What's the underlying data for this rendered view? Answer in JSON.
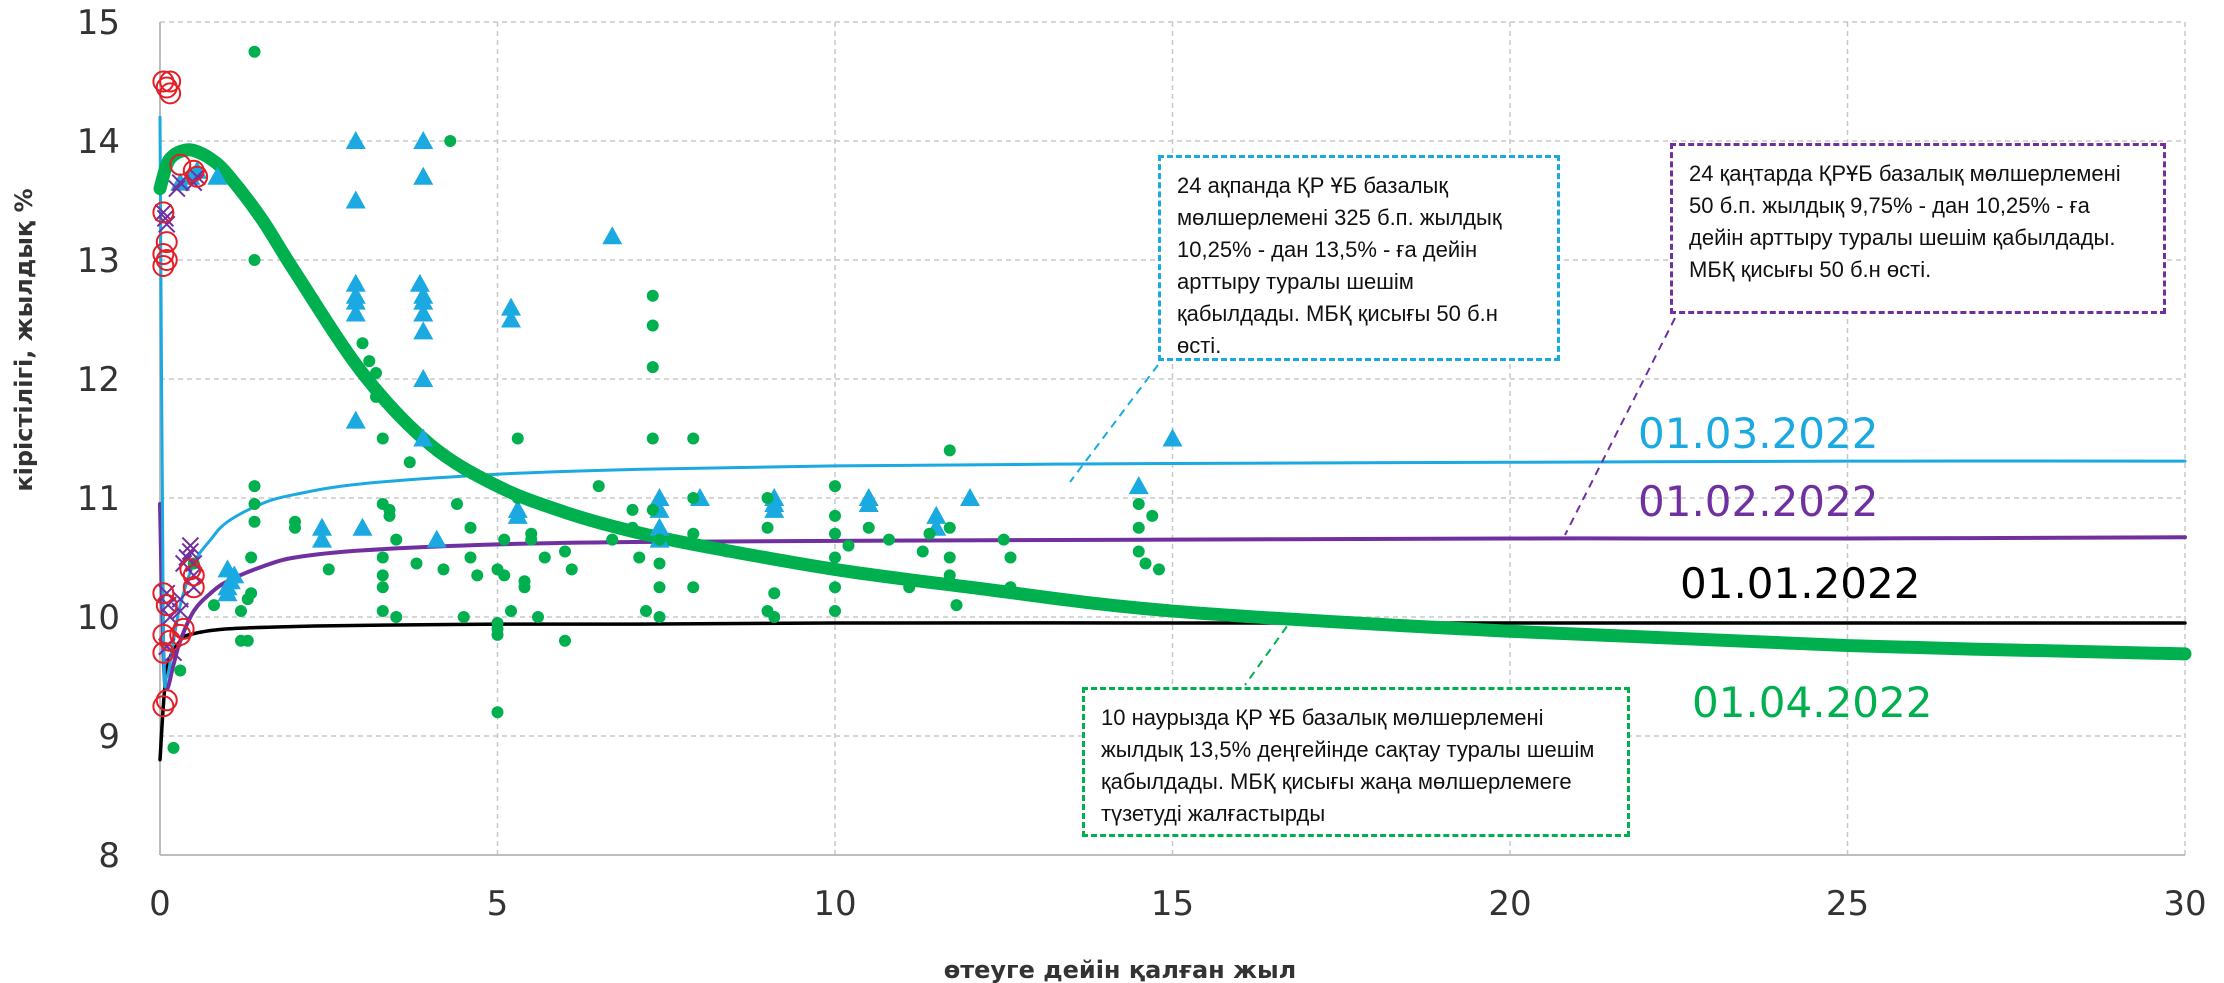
{
  "chart_data": {
    "type": "scatter",
    "xlabel": "өтеуге дейін қалған жыл",
    "ylabel": "кірістілігі, жылдық %",
    "xlim": [
      0,
      30
    ],
    "ylim": [
      8,
      15
    ],
    "xticks": [
      "0",
      "5",
      "10",
      "15",
      "20",
      "25",
      "30"
    ],
    "yticks": [
      "8",
      "9",
      "10",
      "11",
      "12",
      "13",
      "14",
      "15"
    ],
    "grid": true,
    "colors": {
      "jan": "#000000",
      "feb": "#7030a0",
      "mar": "#1aa9e1",
      "apr": "#00b04f",
      "red_markers": "#e41e26"
    },
    "curves": [
      {
        "name": "01.01.2022",
        "color": "#000000",
        "x": [
          0.0,
          0.1,
          0.3,
          0.5,
          1,
          2,
          3,
          5,
          7,
          10,
          15,
          20,
          25,
          30
        ],
        "y": [
          8.8,
          9.55,
          9.8,
          9.86,
          9.9,
          9.92,
          9.93,
          9.94,
          9.94,
          9.95,
          9.95,
          9.95,
          9.95,
          9.95
        ]
      },
      {
        "name": "01.02.2022",
        "color": "#7030a0",
        "x": [
          0.0,
          0.05,
          0.1,
          0.2,
          0.3,
          0.5,
          0.75,
          1,
          1.5,
          2,
          3,
          5,
          7,
          10,
          15,
          20,
          25,
          30
        ],
        "y": [
          10.95,
          9.7,
          9.4,
          9.6,
          9.8,
          10.05,
          10.2,
          10.3,
          10.42,
          10.5,
          10.56,
          10.61,
          10.63,
          10.64,
          10.65,
          10.66,
          10.66,
          10.67
        ]
      },
      {
        "name": "01.03.2022",
        "color": "#1aa9e1",
        "x": [
          0.0,
          0.05,
          0.1,
          0.2,
          0.3,
          0.5,
          0.75,
          1,
          1.5,
          2,
          3,
          5,
          7,
          10,
          15,
          20,
          25,
          30
        ],
        "y": [
          14.2,
          9.9,
          9.5,
          9.8,
          10.1,
          10.45,
          10.65,
          10.8,
          10.95,
          11.03,
          11.12,
          11.2,
          11.24,
          11.27,
          11.29,
          11.3,
          11.31,
          11.31
        ]
      },
      {
        "name": "01.04.2022",
        "color": "#00b04f",
        "x": [
          0.0,
          0.1,
          0.2,
          0.35,
          0.5,
          0.75,
          1,
          1.5,
          2,
          3,
          4,
          5,
          6,
          7,
          8,
          10,
          12,
          15,
          20,
          25,
          30
        ],
        "y": [
          13.6,
          13.8,
          13.88,
          13.92,
          13.92,
          13.85,
          13.72,
          13.35,
          12.9,
          12.05,
          11.45,
          11.1,
          10.88,
          10.72,
          10.6,
          10.4,
          10.25,
          10.05,
          9.88,
          9.76,
          9.69
        ]
      }
    ],
    "series": [
      {
        "marker": "triangle",
        "color": "#1aa9e1",
        "points": [
          [
            0.3,
            13.65
          ],
          [
            0.45,
            13.7
          ],
          [
            0.55,
            13.75
          ],
          [
            0.85,
            13.7
          ],
          [
            1,
            10.25
          ],
          [
            1,
            10.4
          ],
          [
            1,
            10.2
          ],
          [
            1.05,
            10.3
          ],
          [
            1.1,
            10.35
          ],
          [
            2.4,
            10.75
          ],
          [
            2.4,
            10.65
          ],
          [
            2.9,
            14
          ],
          [
            2.9,
            13.5
          ],
          [
            2.9,
            12.8
          ],
          [
            2.9,
            12.7
          ],
          [
            2.9,
            12.65
          ],
          [
            2.9,
            12.55
          ],
          [
            2.9,
            11.65
          ],
          [
            3,
            10.75
          ],
          [
            3.9,
            14
          ],
          [
            3.9,
            13.7
          ],
          [
            3.85,
            12.8
          ],
          [
            3.9,
            12.7
          ],
          [
            3.9,
            12.65
          ],
          [
            3.9,
            12.55
          ],
          [
            3.9,
            12.4
          ],
          [
            3.9,
            12
          ],
          [
            3.9,
            11.5
          ],
          [
            4.1,
            10.65
          ],
          [
            5.2,
            12.6
          ],
          [
            5.2,
            12.5
          ],
          [
            5.3,
            10.9
          ],
          [
            5.3,
            10.85
          ],
          [
            6.7,
            13.2
          ],
          [
            7.4,
            11
          ],
          [
            7.4,
            10.9
          ],
          [
            7.4,
            10.75
          ],
          [
            7.4,
            10.65
          ],
          [
            8,
            11
          ],
          [
            9.1,
            11
          ],
          [
            9.1,
            10.95
          ],
          [
            9.1,
            10.9
          ],
          [
            10.5,
            11
          ],
          [
            10.5,
            10.95
          ],
          [
            11.5,
            10.85
          ],
          [
            11.5,
            10.75
          ],
          [
            12,
            11
          ],
          [
            14.5,
            11.1
          ],
          [
            15,
            11.5
          ]
        ]
      },
      {
        "marker": "dot",
        "color": "#00b04f",
        "points": [
          [
            0.2,
            8.9
          ],
          [
            0.3,
            9.55
          ],
          [
            0.5,
            10.45
          ],
          [
            0.8,
            10.1
          ],
          [
            1.2,
            10.05
          ],
          [
            1.2,
            9.8
          ],
          [
            1.3,
            9.8
          ],
          [
            1.3,
            10.15
          ],
          [
            1.4,
            14.75
          ],
          [
            1.4,
            13
          ],
          [
            1.4,
            11.1
          ],
          [
            1.4,
            10.95
          ],
          [
            1.4,
            10.8
          ],
          [
            1.35,
            10.5
          ],
          [
            1.35,
            10.2
          ],
          [
            2,
            10.75
          ],
          [
            2,
            10.8
          ],
          [
            2.5,
            10.4
          ],
          [
            3,
            12.3
          ],
          [
            3.1,
            12.15
          ],
          [
            3.2,
            12.05
          ],
          [
            3.2,
            11.85
          ],
          [
            3.3,
            11.5
          ],
          [
            3.3,
            10.95
          ],
          [
            3.4,
            10.9
          ],
          [
            3.4,
            10.85
          ],
          [
            3.3,
            10.5
          ],
          [
            3.3,
            10.35
          ],
          [
            3.3,
            10.25
          ],
          [
            3.3,
            10.05
          ],
          [
            3.5,
            10
          ],
          [
            3.5,
            10.65
          ],
          [
            3.7,
            11.3
          ],
          [
            3.8,
            10.45
          ],
          [
            4.2,
            10.4
          ],
          [
            4.3,
            14
          ],
          [
            4.4,
            10.95
          ],
          [
            4.5,
            10
          ],
          [
            4.6,
            10.75
          ],
          [
            4.6,
            10.5
          ],
          [
            4.7,
            10.35
          ],
          [
            5,
            9.95
          ],
          [
            5,
            9.9
          ],
          [
            5,
            9.85
          ],
          [
            5,
            9.2
          ],
          [
            5,
            10.4
          ],
          [
            5.1,
            10.65
          ],
          [
            5.1,
            10.35
          ],
          [
            5.2,
            10.05
          ],
          [
            5.3,
            11.5
          ],
          [
            5.3,
            11
          ],
          [
            5.4,
            10.3
          ],
          [
            5.4,
            10.25
          ],
          [
            5.5,
            10.7
          ],
          [
            5.5,
            10.65
          ],
          [
            5.6,
            10
          ],
          [
            5.7,
            10.5
          ],
          [
            6,
            9.8
          ],
          [
            6,
            10.55
          ],
          [
            6.1,
            10.4
          ],
          [
            6.5,
            11.1
          ],
          [
            6.7,
            10.65
          ],
          [
            7,
            10.9
          ],
          [
            7,
            10.75
          ],
          [
            7.1,
            10.5
          ],
          [
            7.2,
            10.05
          ],
          [
            7.3,
            12.7
          ],
          [
            7.3,
            12.45
          ],
          [
            7.3,
            12.1
          ],
          [
            7.3,
            11.5
          ],
          [
            7.3,
            10.9
          ],
          [
            7.4,
            10.65
          ],
          [
            7.4,
            10.45
          ],
          [
            7.4,
            10.25
          ],
          [
            7.4,
            10
          ],
          [
            7.9,
            11
          ],
          [
            7.9,
            10.7
          ],
          [
            7.9,
            10.25
          ],
          [
            7.9,
            11.5
          ],
          [
            8.4,
            10.55
          ],
          [
            9,
            11
          ],
          [
            9,
            10.75
          ],
          [
            9,
            10.5
          ],
          [
            9,
            10.05
          ],
          [
            9.1,
            10.2
          ],
          [
            9.1,
            10
          ],
          [
            10,
            11.1
          ],
          [
            10,
            10.85
          ],
          [
            10,
            10.7
          ],
          [
            10,
            10.5
          ],
          [
            10,
            10.25
          ],
          [
            10,
            10.05
          ],
          [
            10.2,
            10.6
          ],
          [
            10.5,
            10.75
          ],
          [
            10.8,
            10.65
          ],
          [
            11.1,
            10.25
          ],
          [
            11.3,
            10.55
          ],
          [
            11.4,
            10.7
          ],
          [
            11.7,
            11.4
          ],
          [
            11.7,
            10.75
          ],
          [
            11.7,
            10.5
          ],
          [
            11.7,
            10.35
          ],
          [
            11.8,
            10.1
          ],
          [
            12.5,
            10.65
          ],
          [
            12.6,
            10.5
          ],
          [
            12.6,
            10.25
          ],
          [
            14.5,
            10.95
          ],
          [
            14.5,
            10.75
          ],
          [
            14.5,
            10.55
          ],
          [
            14.6,
            10.45
          ],
          [
            14.7,
            10.85
          ],
          [
            14.8,
            10.4
          ]
        ]
      },
      {
        "marker": "cross",
        "color": "#7030a0",
        "points": [
          [
            0.05,
            13.4
          ],
          [
            0.08,
            13.35
          ],
          [
            0.1,
            13.3
          ],
          [
            0.1,
            10.2
          ],
          [
            0.12,
            10.1
          ],
          [
            0.15,
            10
          ],
          [
            0.1,
            9.75
          ],
          [
            0.2,
            9.7
          ],
          [
            0.25,
            13.6
          ],
          [
            0.3,
            13.65
          ],
          [
            0.35,
            10.45
          ],
          [
            0.4,
            10.5
          ],
          [
            0.45,
            10.55
          ],
          [
            0.45,
            10.6
          ],
          [
            0.5,
            10.45
          ],
          [
            0.5,
            10.35
          ],
          [
            0.5,
            10.25
          ],
          [
            0.5,
            13.65
          ],
          [
            0.55,
            13.7
          ],
          [
            0.3,
            10.15
          ],
          [
            0.3,
            10.05
          ]
        ]
      },
      {
        "marker": "ring",
        "color": "#e41e26",
        "points": [
          [
            0.05,
            14.5
          ],
          [
            0.1,
            14.45
          ],
          [
            0.15,
            14.5
          ],
          [
            0.15,
            14.4
          ],
          [
            0.05,
            13.4
          ],
          [
            0.1,
            13.15
          ],
          [
            0.05,
            13.05
          ],
          [
            0.1,
            13
          ],
          [
            0.05,
            12.95
          ],
          [
            0.3,
            13.8
          ],
          [
            0.05,
            10.2
          ],
          [
            0.1,
            10.1
          ],
          [
            0.05,
            9.85
          ],
          [
            0.15,
            9.8
          ],
          [
            0.05,
            9.7
          ],
          [
            0.1,
            9.3
          ],
          [
            0.05,
            9.25
          ],
          [
            0.3,
            9.85
          ],
          [
            0.35,
            9.9
          ],
          [
            0.45,
            10.4
          ],
          [
            0.5,
            10.35
          ],
          [
            0.5,
            13.75
          ],
          [
            0.55,
            13.7
          ],
          [
            0.5,
            10.25
          ]
        ]
      }
    ],
    "annotations": [
      {
        "id": "note1",
        "lines": [
          "24 ақпанда ҚР ҰБ базалық",
          "мөлшерлемені 325 б.п. жылдық",
          "10,25% - дан 13,5% - ға дейін",
          "арттыру туралы шешім",
          "қабылдады.  МБҚ қисығы 50 б.н",
          "өсті."
        ],
        "color": "#1aa9e1"
      },
      {
        "id": "note2",
        "lines": [
          "24 қаңтарда ҚРҰБ базалық мөлшерлемені",
          "50 б.п. жылдық 9,75% - дан 10,25% - ға",
          "дейін арттыру туралы шешім қабылдады.",
          "МБҚ қисығы 50 б.н өсті."
        ],
        "color": "#7030a0"
      },
      {
        "id": "note3",
        "lines": [
          "10 наурызда ҚР ҰБ базалық мөлшерлемені",
          "жылдық 13,5% деңгейінде сақтау туралы шешім",
          "қабылдады. МБҚ қисығы жаңа мөлшерлемеге",
          "түзетуді жалғастырды"
        ],
        "color": "#00b04f"
      }
    ]
  }
}
